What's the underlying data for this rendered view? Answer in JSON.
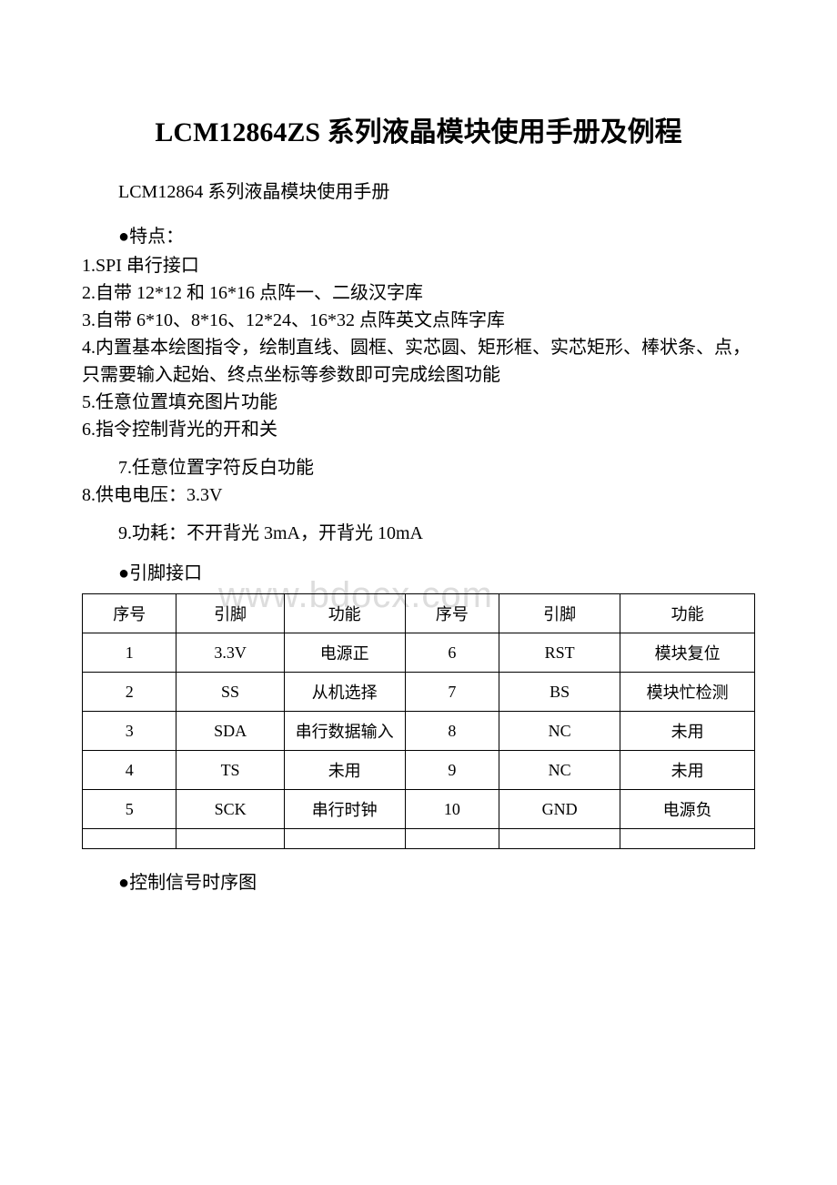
{
  "title": "LCM12864ZS 系列液晶模块使用手册及例程",
  "subtitle": "LCM12864 系列液晶模块使用手册",
  "features_header": "●特点：",
  "features": [
    "1.SPI 串行接口",
    "2.自带 12*12 和 16*16 点阵一、二级汉字库",
    "3.自带 6*10、8*16、12*24、16*32 点阵英文点阵字库",
    "4.内置基本绘图指令，绘制直线、圆框、实芯圆、矩形框、实芯矩形、棒状条、点，只需要输入起始、终点坐标等参数即可完成绘图功能",
    "5.任意位置填充图片功能",
    "6.指令控制背光的开和关"
  ],
  "feature7": "7.任意位置字符反白功能",
  "feature8": "8.供电电压：3.3V",
  "feature9": "9.功耗：不开背光 3mA，开背光 10mA",
  "pin_header": "●引脚接口",
  "watermark": "www.bdocx.com",
  "table": {
    "columns": [
      "序号",
      "引脚",
      "功能",
      "序号",
      "引脚",
      "功能"
    ],
    "rows": [
      [
        "1",
        "3.3V",
        "电源正",
        "6",
        "RST",
        "模块复位"
      ],
      [
        "2",
        "SS",
        "从机选择",
        "7",
        "BS",
        "模块忙检测"
      ],
      [
        "3",
        "SDA",
        "串行数据输入",
        "8",
        "NC",
        "未用"
      ],
      [
        "4",
        "TS",
        "未用",
        "9",
        "NC",
        "未用"
      ],
      [
        "5",
        "SCK",
        "串行时钟",
        "10",
        "GND",
        "电源负"
      ]
    ],
    "col_widths": [
      "14%",
      "16%",
      "18%",
      "14%",
      "18%",
      "20%"
    ]
  },
  "timing_header": "●控制信号时序图",
  "colors": {
    "text": "#000000",
    "background": "#ffffff",
    "watermark": "#dddddd",
    "border": "#000000"
  }
}
